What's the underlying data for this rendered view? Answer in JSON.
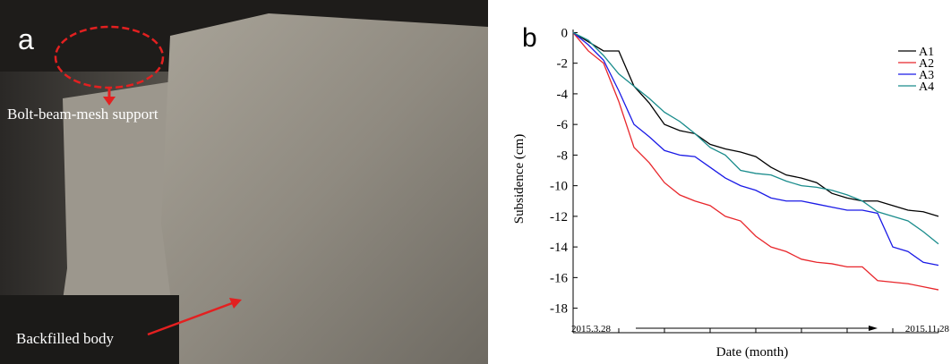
{
  "photo": {
    "label": "a",
    "annotations": [
      "Bolt-beam-mesh support",
      "Backfilled body"
    ]
  },
  "chart_data": {
    "type": "line",
    "panel_label": "b",
    "x_label": "Date (month)",
    "y_label": "Subsidence (cm)",
    "categories": [
      "2015.3.28",
      null,
      null,
      null,
      null,
      null,
      null,
      null,
      null,
      null,
      null,
      null,
      null,
      null,
      null,
      null,
      null,
      null,
      null,
      null,
      null,
      null,
      null,
      null,
      "2015.11.28"
    ],
    "series": [
      {
        "name": "A1",
        "color": "#000000",
        "values": [
          0,
          -0.6,
          -1.2,
          -1.2,
          -3.5,
          -4.6,
          -6,
          -6.4,
          -6.6,
          -7.3,
          -7.6,
          -7.8,
          -8.1,
          -8.8,
          -9.3,
          -9.5,
          -9.8,
          -10.5,
          -10.8,
          -11,
          -11,
          -11.3,
          -11.6,
          -11.7,
          -12
        ]
      },
      {
        "name": "A2",
        "color": "#e8262b",
        "values": [
          0,
          -1.2,
          -2,
          -4.5,
          -7.5,
          -8.5,
          -9.8,
          -10.6,
          -11,
          -11.3,
          -12,
          -12.3,
          -13.3,
          -14,
          -14.3,
          -14.8,
          -15,
          -15.1,
          -15.3,
          -15.3,
          -16.2,
          -16.3,
          -16.4,
          -16.6,
          -16.8
        ]
      },
      {
        "name": "A3",
        "color": "#1a1ae6",
        "values": [
          0,
          -0.8,
          -1.8,
          -3.8,
          -6,
          -6.8,
          -7.7,
          -8,
          -8.1,
          -8.8,
          -9.5,
          -10,
          -10.3,
          -10.8,
          -11,
          -11,
          -11.2,
          -11.4,
          -11.6,
          -11.6,
          -11.8,
          -14,
          -14.3,
          -15,
          -15.2
        ]
      },
      {
        "name": "A4",
        "color": "#1a8c8c",
        "values": [
          0,
          -0.5,
          -1.5,
          -2.7,
          -3.5,
          -4.3,
          -5.2,
          -5.8,
          -6.6,
          -7.5,
          -8,
          -9,
          -9.2,
          -9.3,
          -9.7,
          -10,
          -10.1,
          -10.3,
          -10.6,
          -11,
          -11.7,
          -12,
          -12.3,
          -13,
          -13.8
        ]
      }
    ],
    "ylim": [
      -19.6,
      0.2
    ],
    "yticks": [
      0,
      -2,
      -4,
      -6,
      -8,
      -10,
      -12,
      -14,
      -16,
      -18
    ],
    "legend": "upper right"
  }
}
